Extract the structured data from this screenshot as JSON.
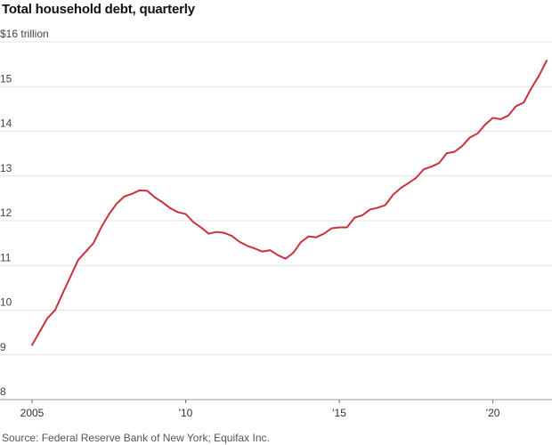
{
  "title": "Total household debt, quarterly",
  "source": "Source: Federal Reserve Bank of New York; Equifax Inc.",
  "colors": {
    "line": "#c8323c",
    "grid": "#e3e3e3"
  },
  "chart_data": {
    "type": "line",
    "title": "Total household debt, quarterly",
    "ylabel": "$16 trillion",
    "ylim": [
      8,
      16
    ],
    "xlim": [
      2005.0,
      2021.75
    ],
    "y_ticks": [
      8,
      9,
      10,
      11,
      12,
      13,
      14,
      15,
      16
    ],
    "y_tick_labels": [
      "8",
      "9",
      "10",
      "11",
      "12",
      "13",
      "14",
      "15",
      "$16 trillion"
    ],
    "x_ticks": [
      2005,
      2010,
      2015,
      2020
    ],
    "x_tick_labels": [
      "2005",
      "'10",
      "'15",
      "'20"
    ],
    "grid": true,
    "series": [
      {
        "x": [
          "2005 Q1",
          "2005 Q2",
          "2005 Q3",
          "2005 Q4",
          "2006 Q1",
          "2006 Q2",
          "2006 Q3",
          "2006 Q4",
          "2007 Q1",
          "2007 Q2",
          "2007 Q3",
          "2007 Q4",
          "2008 Q1",
          "2008 Q2",
          "2008 Q3",
          "2008 Q4",
          "2009 Q1",
          "2009 Q2",
          "2009 Q3",
          "2009 Q4",
          "2010 Q1",
          "2010 Q2",
          "2010 Q3",
          "2010 Q4",
          "2011 Q1",
          "2011 Q2",
          "2011 Q3",
          "2011 Q4",
          "2012 Q1",
          "2012 Q2",
          "2012 Q3",
          "2012 Q4",
          "2013 Q1",
          "2013 Q2",
          "2013 Q3",
          "2013 Q4",
          "2014 Q1",
          "2014 Q2",
          "2014 Q3",
          "2014 Q4",
          "2015 Q1",
          "2015 Q2",
          "2015 Q3",
          "2015 Q4",
          "2016 Q1",
          "2016 Q2",
          "2016 Q3",
          "2016 Q4",
          "2017 Q1",
          "2017 Q2",
          "2017 Q3",
          "2017 Q4",
          "2018 Q1",
          "2018 Q2",
          "2018 Q3",
          "2018 Q4",
          "2019 Q1",
          "2019 Q2",
          "2019 Q3",
          "2019 Q4",
          "2020 Q1",
          "2020 Q2",
          "2020 Q3",
          "2020 Q4",
          "2021 Q1",
          "2021 Q2",
          "2021 Q3",
          "2021 Q4"
        ],
        "values": [
          9.22,
          9.52,
          9.82,
          10.0,
          10.38,
          10.75,
          11.12,
          11.31,
          11.5,
          11.85,
          12.14,
          12.38,
          12.54,
          12.6,
          12.68,
          12.67,
          12.52,
          12.41,
          12.28,
          12.19,
          12.15,
          11.97,
          11.85,
          11.71,
          11.75,
          11.73,
          11.66,
          11.53,
          11.44,
          11.38,
          11.31,
          11.34,
          11.23,
          11.15,
          11.28,
          11.52,
          11.65,
          11.63,
          11.71,
          11.83,
          11.85,
          11.85,
          12.07,
          12.12,
          12.25,
          12.29,
          12.35,
          12.58,
          12.73,
          12.84,
          12.96,
          13.15,
          13.21,
          13.29,
          13.51,
          13.54,
          13.67,
          13.86,
          13.95,
          14.15,
          14.3,
          14.27,
          14.35,
          14.56,
          14.64,
          14.96,
          15.24,
          15.58
        ]
      }
    ]
  }
}
